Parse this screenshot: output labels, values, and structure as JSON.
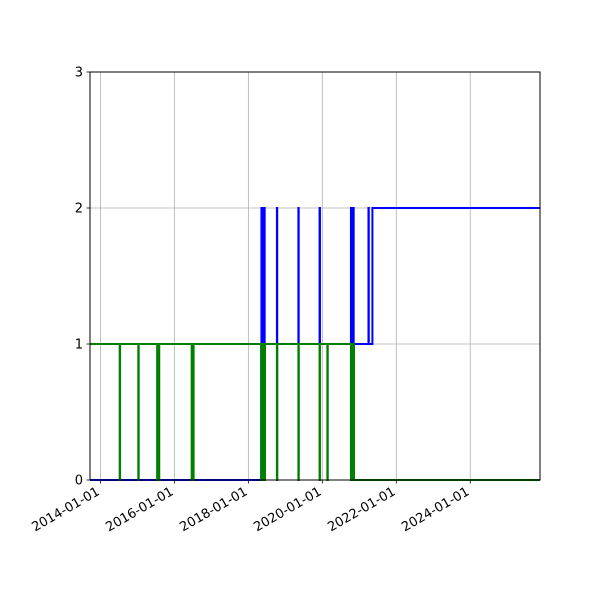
{
  "chart_data": {
    "type": "line",
    "title": "",
    "xlabel": "",
    "ylabel": "",
    "x_axis": {
      "type": "date",
      "range": [
        "2013-09-20",
        "2025-11-20"
      ],
      "ticks": [
        "2014-01-01",
        "2016-01-01",
        "2018-01-01",
        "2020-01-01",
        "2022-01-01",
        "2024-01-01"
      ]
    },
    "y_axis": {
      "range": [
        0,
        3
      ],
      "ticks": [
        "0",
        "1",
        "2",
        "3"
      ]
    },
    "grid": true,
    "legend": "none",
    "series": [
      {
        "color": "#0000ff",
        "drawstyle": "steps-post",
        "points": [
          [
            "2013-09-20",
            0
          ],
          [
            "2018-05-08",
            0
          ],
          [
            "2018-05-08",
            1
          ],
          [
            "2018-05-10",
            1
          ],
          [
            "2018-05-10",
            2
          ],
          [
            "2018-05-12",
            2
          ],
          [
            "2018-05-12",
            1
          ],
          [
            "2018-05-15",
            1
          ],
          [
            "2018-05-15",
            2
          ],
          [
            "2018-05-17",
            2
          ],
          [
            "2018-05-17",
            1
          ],
          [
            "2018-05-20",
            1
          ],
          [
            "2018-05-20",
            2
          ],
          [
            "2018-05-22",
            2
          ],
          [
            "2018-05-22",
            1
          ],
          [
            "2018-05-25",
            1
          ],
          [
            "2018-05-25",
            2
          ],
          [
            "2018-05-27",
            2
          ],
          [
            "2018-05-27",
            1
          ],
          [
            "2018-05-30",
            1
          ],
          [
            "2018-05-30",
            2
          ],
          [
            "2018-06-01",
            2
          ],
          [
            "2018-06-01",
            1
          ],
          [
            "2018-06-04",
            1
          ],
          [
            "2018-06-04",
            2
          ],
          [
            "2018-06-06",
            2
          ],
          [
            "2018-06-06",
            1
          ],
          [
            "2018-06-09",
            1
          ],
          [
            "2018-06-09",
            2
          ],
          [
            "2018-06-11",
            2
          ],
          [
            "2018-06-11",
            1
          ],
          [
            "2018-10-10",
            1
          ],
          [
            "2018-10-10",
            2
          ],
          [
            "2018-10-13",
            2
          ],
          [
            "2018-10-13",
            1
          ],
          [
            "2019-05-10",
            1
          ],
          [
            "2019-05-10",
            2
          ],
          [
            "2019-05-13",
            2
          ],
          [
            "2019-05-13",
            1
          ],
          [
            "2019-12-05",
            1
          ],
          [
            "2019-12-05",
            2
          ],
          [
            "2019-12-09",
            2
          ],
          [
            "2019-12-09",
            1
          ],
          [
            "2020-10-10",
            1
          ],
          [
            "2020-10-10",
            2
          ],
          [
            "2020-10-13",
            2
          ],
          [
            "2020-10-13",
            1
          ],
          [
            "2020-10-18",
            1
          ],
          [
            "2020-10-18",
            2
          ],
          [
            "2020-10-21",
            2
          ],
          [
            "2020-10-21",
            1
          ],
          [
            "2020-10-26",
            1
          ],
          [
            "2020-10-26",
            2
          ],
          [
            "2020-10-29",
            2
          ],
          [
            "2020-10-29",
            1
          ],
          [
            "2020-11-03",
            1
          ],
          [
            "2020-11-03",
            2
          ],
          [
            "2020-11-06",
            2
          ],
          [
            "2020-11-06",
            1
          ],
          [
            "2021-04-01",
            1
          ],
          [
            "2021-04-01",
            2
          ],
          [
            "2021-04-04",
            2
          ],
          [
            "2021-04-04",
            1
          ],
          [
            "2021-05-10",
            1
          ],
          [
            "2021-05-10",
            2
          ],
          [
            "2025-11-20",
            2
          ]
        ]
      },
      {
        "color": "#008000",
        "drawstyle": "steps-post",
        "points": [
          [
            "2013-09-20",
            1
          ],
          [
            "2014-07-10",
            1
          ],
          [
            "2014-07-10",
            0
          ],
          [
            "2014-07-14",
            0
          ],
          [
            "2014-07-14",
            1
          ],
          [
            "2015-01-10",
            1
          ],
          [
            "2015-01-10",
            0
          ],
          [
            "2015-01-14",
            0
          ],
          [
            "2015-01-14",
            1
          ],
          [
            "2015-07-15",
            1
          ],
          [
            "2015-07-15",
            0
          ],
          [
            "2015-07-19",
            0
          ],
          [
            "2015-07-19",
            1
          ],
          [
            "2015-08-01",
            1
          ],
          [
            "2015-08-01",
            0
          ],
          [
            "2015-08-05",
            0
          ],
          [
            "2015-08-05",
            1
          ],
          [
            "2016-06-20",
            1
          ],
          [
            "2016-06-20",
            0
          ],
          [
            "2016-06-24",
            0
          ],
          [
            "2016-06-24",
            1
          ],
          [
            "2016-07-05",
            1
          ],
          [
            "2016-07-05",
            0
          ],
          [
            "2016-07-09",
            0
          ],
          [
            "2016-07-09",
            1
          ],
          [
            "2018-05-08",
            1
          ],
          [
            "2018-05-08",
            0
          ],
          [
            "2018-05-10",
            0
          ],
          [
            "2018-05-10",
            1
          ],
          [
            "2018-05-13",
            1
          ],
          [
            "2018-05-13",
            0
          ],
          [
            "2018-05-15",
            0
          ],
          [
            "2018-05-15",
            1
          ],
          [
            "2018-05-18",
            1
          ],
          [
            "2018-05-18",
            0
          ],
          [
            "2018-05-20",
            0
          ],
          [
            "2018-05-20",
            1
          ],
          [
            "2018-05-23",
            1
          ],
          [
            "2018-05-23",
            0
          ],
          [
            "2018-05-25",
            0
          ],
          [
            "2018-05-25",
            1
          ],
          [
            "2018-05-28",
            1
          ],
          [
            "2018-05-28",
            0
          ],
          [
            "2018-05-30",
            0
          ],
          [
            "2018-05-30",
            1
          ],
          [
            "2018-06-02",
            1
          ],
          [
            "2018-06-02",
            0
          ],
          [
            "2018-06-04",
            0
          ],
          [
            "2018-06-04",
            1
          ],
          [
            "2018-06-07",
            1
          ],
          [
            "2018-06-07",
            0
          ],
          [
            "2018-06-09",
            0
          ],
          [
            "2018-06-09",
            1
          ],
          [
            "2018-06-12",
            1
          ],
          [
            "2018-06-12",
            0
          ],
          [
            "2018-06-14",
            0
          ],
          [
            "2018-06-14",
            1
          ],
          [
            "2018-10-10",
            1
          ],
          [
            "2018-10-10",
            0
          ],
          [
            "2018-10-14",
            0
          ],
          [
            "2018-10-14",
            1
          ],
          [
            "2019-05-10",
            1
          ],
          [
            "2019-05-10",
            0
          ],
          [
            "2019-05-14",
            0
          ],
          [
            "2019-05-14",
            1
          ],
          [
            "2019-12-05",
            1
          ],
          [
            "2019-12-05",
            0
          ],
          [
            "2019-12-09",
            0
          ],
          [
            "2019-12-09",
            1
          ],
          [
            "2020-02-20",
            1
          ],
          [
            "2020-02-20",
            0
          ],
          [
            "2020-02-24",
            0
          ],
          [
            "2020-02-24",
            1
          ],
          [
            "2020-10-10",
            1
          ],
          [
            "2020-10-10",
            0
          ],
          [
            "2020-10-13",
            0
          ],
          [
            "2020-10-13",
            1
          ],
          [
            "2020-10-16",
            1
          ],
          [
            "2020-10-16",
            0
          ],
          [
            "2020-10-19",
            0
          ],
          [
            "2020-10-19",
            1
          ],
          [
            "2020-10-22",
            1
          ],
          [
            "2020-10-22",
            0
          ],
          [
            "2020-10-25",
            0
          ],
          [
            "2020-10-25",
            1
          ],
          [
            "2020-10-28",
            1
          ],
          [
            "2020-10-28",
            0
          ],
          [
            "2020-10-31",
            0
          ],
          [
            "2020-10-31",
            1
          ],
          [
            "2020-11-03",
            1
          ],
          [
            "2020-11-03",
            0
          ],
          [
            "2020-11-06",
            0
          ],
          [
            "2020-11-06",
            1
          ],
          [
            "2020-11-09",
            1
          ],
          [
            "2020-11-09",
            0
          ],
          [
            "2025-11-20",
            0
          ]
        ]
      }
    ]
  }
}
